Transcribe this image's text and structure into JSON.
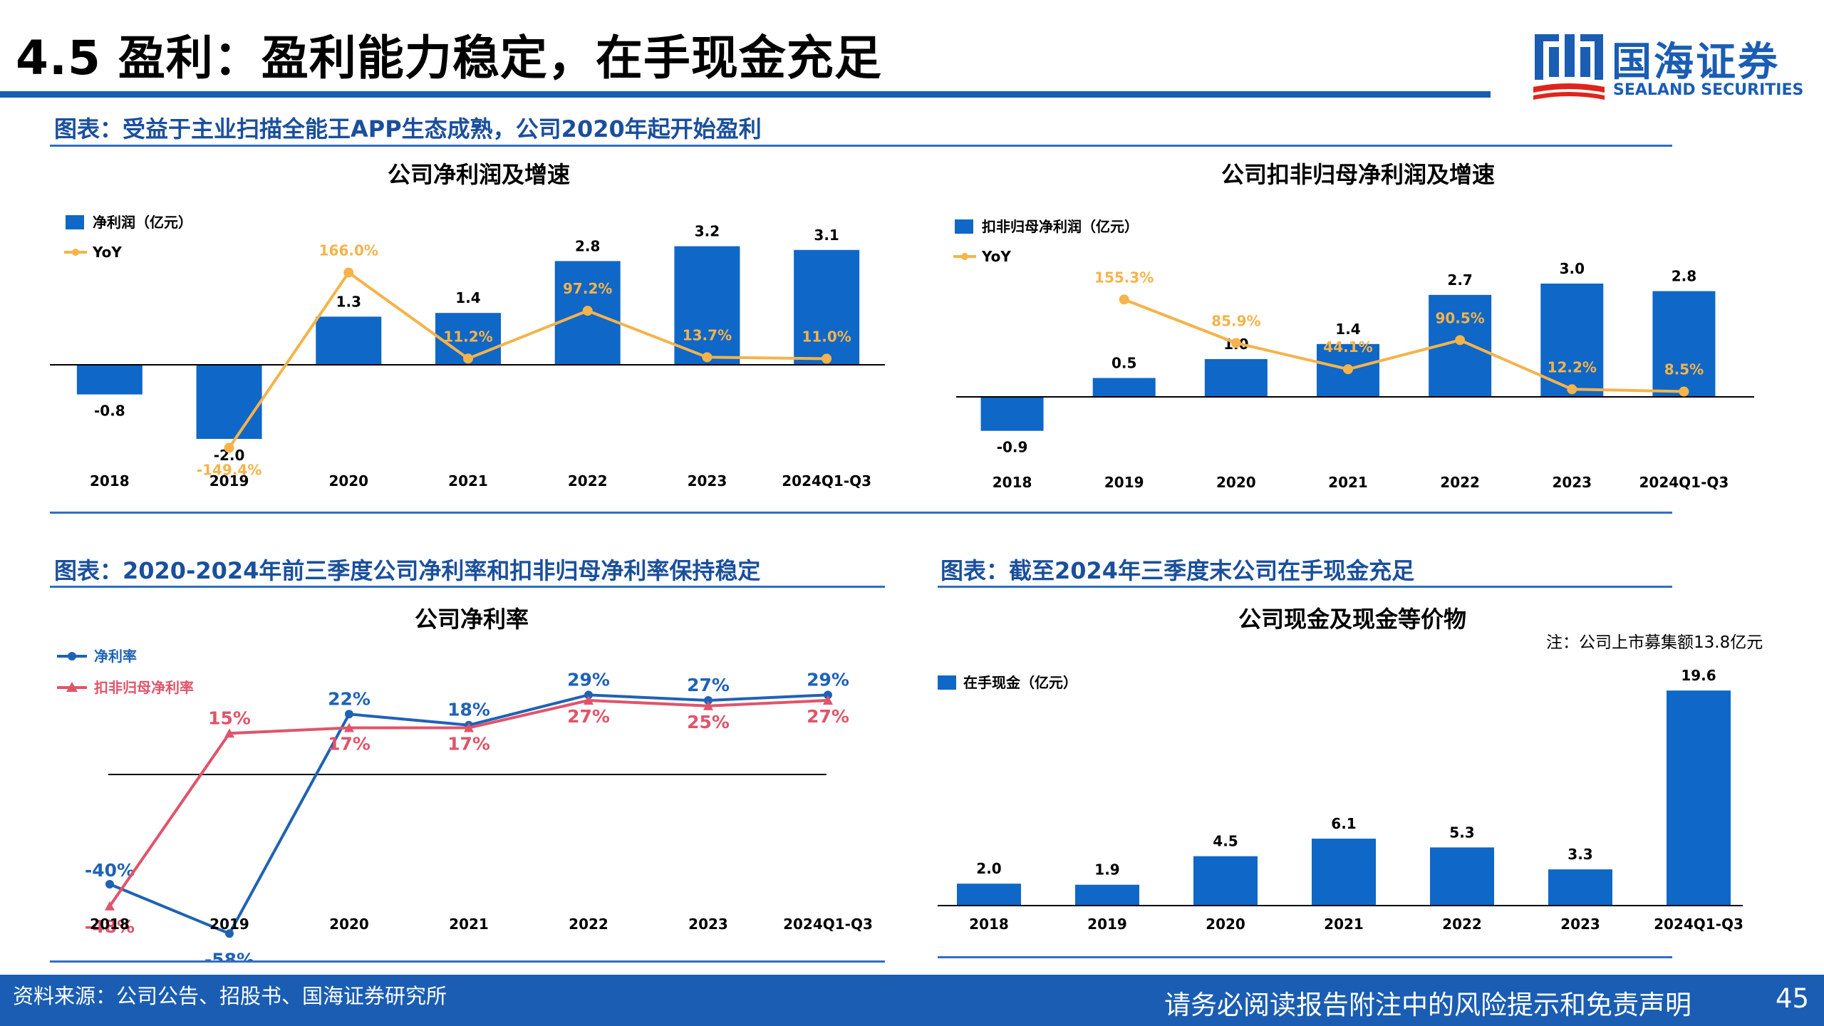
{
  "page": {
    "title": "4.5 盈利：盈利能力稳定，在手现金充足",
    "logo_cn": "国海证券",
    "logo_en": "SEALAND SECURITIES",
    "page_number": "45"
  },
  "colors": {
    "brand_blue": "#1a5db3",
    "bar_blue": "#0f67c7",
    "yoy_orange": "#f5b34a",
    "line_blue": "#1f62b5",
    "line_red": "#e0546a"
  },
  "captions": {
    "fig1": "图表：受益于主业扫描全能王APP生态成熟，公司2020年起开始盈利",
    "fig2": "图表：2020-2024年前三季度公司净利率和扣非归母净利率保持稳定",
    "fig3": "图表：截至2024年三季度末公司在手现金充足"
  },
  "footer": {
    "source": "资料来源：公司公告、招股书、国海证券研究所",
    "disclaimer": "请务必阅读报告附注中的风险提示和免责声明"
  },
  "chart_data": [
    {
      "type": "bar",
      "title": "公司净利润及增速",
      "categories": [
        "2018",
        "2019",
        "2020",
        "2021",
        "2022",
        "2023",
        "2024Q1-Q3"
      ],
      "series": [
        {
          "name": "净利润（亿元）",
          "type": "bar",
          "values": [
            -0.8,
            -2.0,
            1.3,
            1.4,
            2.8,
            3.2,
            3.1
          ],
          "labels": [
            "-0.8",
            "-2.0",
            "1.3",
            "1.4",
            "2.8",
            "3.2",
            "3.1"
          ]
        },
        {
          "name": "YoY",
          "type": "line",
          "values": [
            null,
            -149.4,
            166.0,
            11.2,
            97.2,
            13.7,
            11.0
          ],
          "labels": [
            "",
            "-149.4%",
            "166.0%",
            "11.2%",
            "97.2%",
            "13.7%",
            "11.0%"
          ]
        }
      ],
      "legend_position": "top-left"
    },
    {
      "type": "bar",
      "title": "公司扣非归母净利润及增速",
      "categories": [
        "2018",
        "2019",
        "2020",
        "2021",
        "2022",
        "2023",
        "2024Q1-Q3"
      ],
      "series": [
        {
          "name": "扣非归母净利润（亿元）",
          "type": "bar",
          "values": [
            -0.9,
            0.5,
            1.0,
            1.4,
            2.7,
            3.0,
            2.8
          ],
          "labels": [
            "-0.9",
            "0.5",
            "1.0",
            "1.4",
            "2.7",
            "3.0",
            "2.8"
          ]
        },
        {
          "name": "YoY",
          "type": "line",
          "values": [
            null,
            155.3,
            85.9,
            44.1,
            90.5,
            12.2,
            8.5
          ],
          "labels": [
            "",
            "155.3%",
            "85.9%",
            "44.1%",
            "90.5%",
            "12.2%",
            "8.5%"
          ]
        }
      ],
      "legend_position": "top-left"
    },
    {
      "type": "line",
      "title": "公司净利率",
      "categories": [
        "2018",
        "2019",
        "2020",
        "2021",
        "2022",
        "2023",
        "2024Q1-Q3"
      ],
      "series": [
        {
          "name": "净利率",
          "values": [
            -40,
            -58,
            22,
            18,
            29,
            27,
            29
          ],
          "labels": [
            "-40%",
            "-58%",
            "22%",
            "18%",
            "29%",
            "27%",
            "29%"
          ]
        },
        {
          "name": "扣非归母净利率",
          "values": [
            -48,
            15,
            17,
            17,
            27,
            25,
            27
          ],
          "labels": [
            "-48%",
            "15%",
            "17%",
            "17%",
            "27%",
            "25%",
            "27%"
          ]
        }
      ],
      "legend_position": "top-left"
    },
    {
      "type": "bar",
      "title": "公司现金及现金等价物",
      "note": "注：公司上市募集额13.8亿元",
      "categories": [
        "2018",
        "2019",
        "2020",
        "2021",
        "2022",
        "2023",
        "2024Q1-Q3"
      ],
      "series": [
        {
          "name": "在手现金（亿元）",
          "values": [
            2.0,
            1.9,
            4.5,
            6.1,
            5.3,
            3.3,
            19.6
          ],
          "labels": [
            "2.0",
            "1.9",
            "4.5",
            "6.1",
            "5.3",
            "3.3",
            "19.6"
          ]
        }
      ],
      "legend_position": "top-left"
    }
  ]
}
